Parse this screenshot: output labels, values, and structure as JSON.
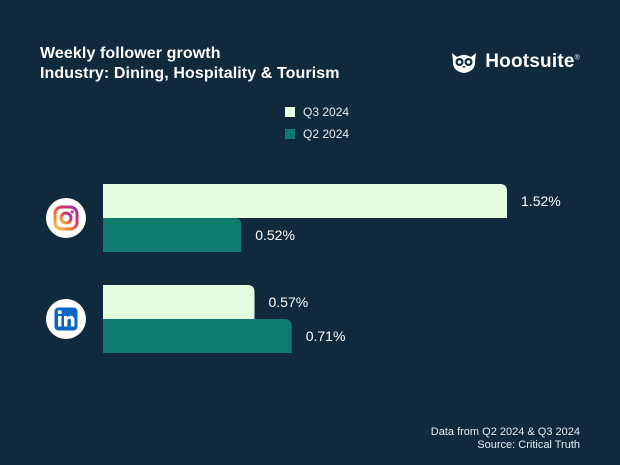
{
  "title": {
    "line1": "Weekly follower growth",
    "line2": "Industry: Dining, Hospitality & Tourism"
  },
  "brand": {
    "name": "Hootsuite",
    "mark": "®"
  },
  "colors": {
    "background": "#0e2a3c",
    "q3": "#e4fde1",
    "q2": "#0f7a6e",
    "text": "#ffffff"
  },
  "chart_data": {
    "type": "bar",
    "orientation": "horizontal",
    "categories": [
      "Instagram",
      "LinkedIn"
    ],
    "series": [
      {
        "name": "Q3 2024",
        "values": [
          1.52,
          0.57
        ],
        "labels": [
          "1.52%",
          "0.57%"
        ]
      },
      {
        "name": "Q2 2024",
        "values": [
          0.52,
          0.71
        ],
        "labels": [
          "0.52%",
          "0.71%"
        ]
      }
    ],
    "unit": "%",
    "xlim": [
      0,
      1.6
    ],
    "grid": false,
    "legend": "top-center"
  },
  "footer": {
    "line1": "Data from Q2 2024 & Q3 2024",
    "line2": "Source: Critical Truth"
  }
}
